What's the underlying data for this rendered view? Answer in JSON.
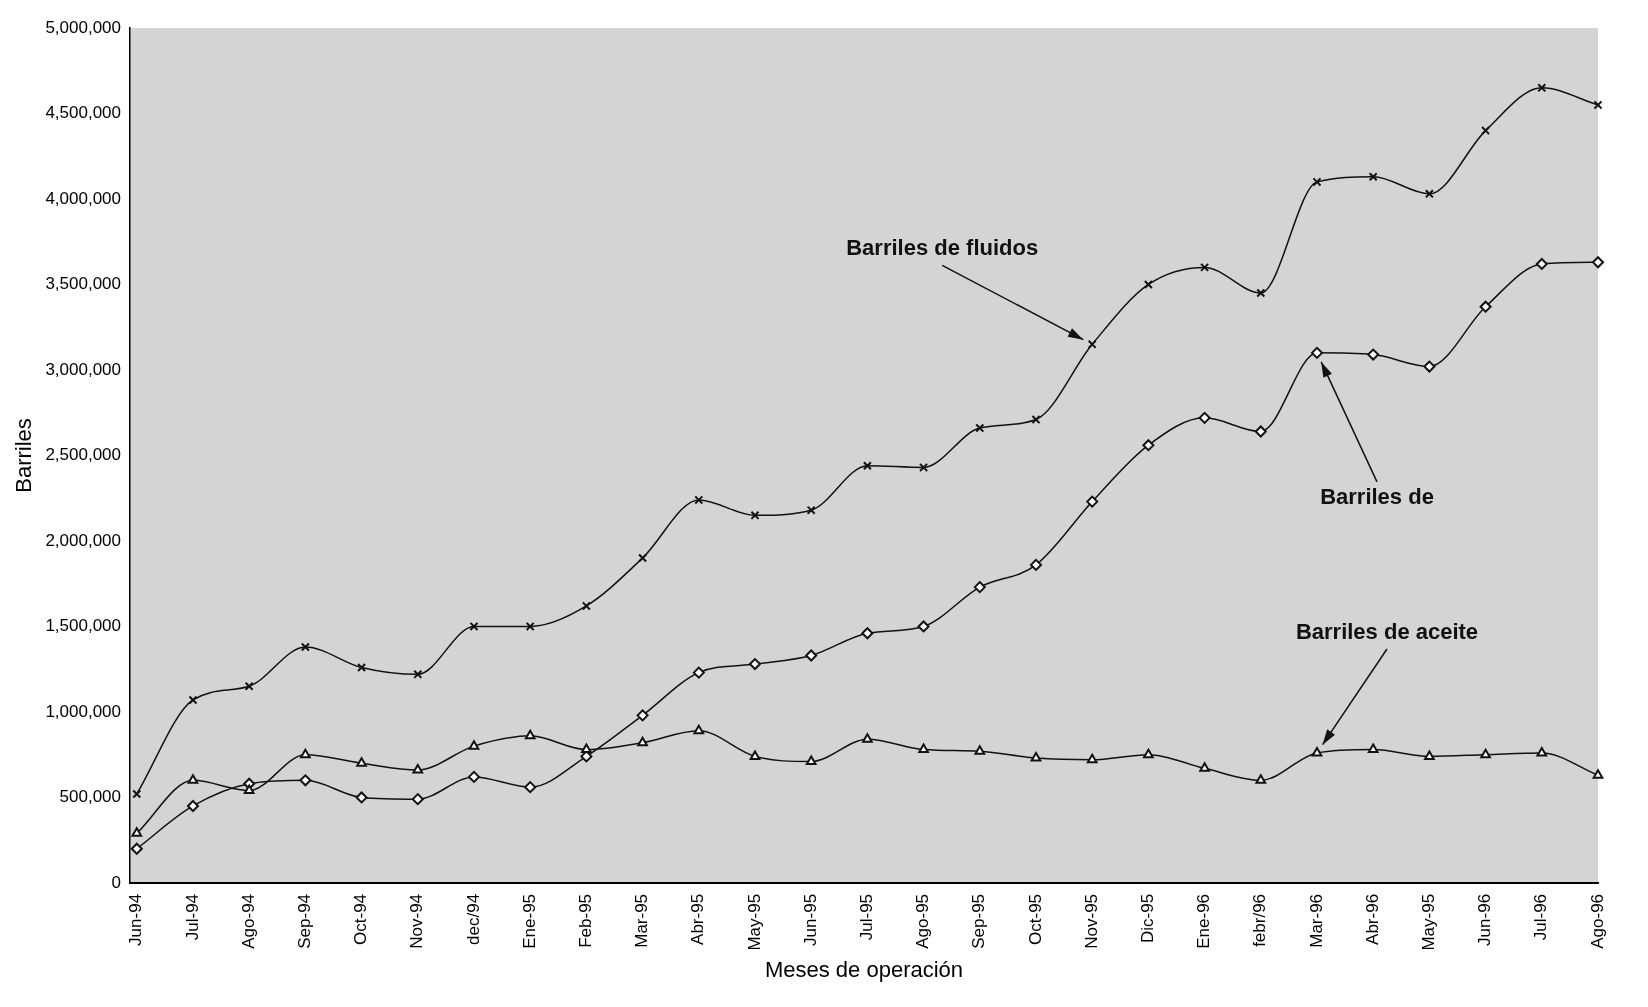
{
  "chart_data": {
    "type": "line",
    "xlabel": "Meses de operación",
    "ylabel": "Barriles",
    "categories": [
      "Jun-94",
      "Jul-94",
      "Ago-94",
      "Sep-94",
      "Oct-94",
      "Nov-94",
      "dec/94",
      "Ene-95",
      "Feb-95",
      "Mar-95",
      "Abr-95",
      "May-95",
      "Jun-95",
      "Jul-95",
      "Ago-95",
      "Sep-95",
      "Oct-95",
      "Nov-95",
      "Dic-95",
      "Ene-96",
      "febr/96",
      "Mar-96",
      "Abr-96",
      "May-95",
      "Jun-96",
      "Jul-96",
      "Ago-96"
    ],
    "series": [
      {
        "name": "Barriles de fluidos",
        "color": "#111111",
        "marker": "cross",
        "values": [
          520000,
          1070000,
          1150000,
          1380000,
          1260000,
          1220000,
          1500000,
          1500000,
          1620000,
          1900000,
          2240000,
          2150000,
          2180000,
          2440000,
          2430000,
          2660000,
          2710000,
          3150000,
          3500000,
          3600000,
          3450000,
          4100000,
          4130000,
          4030000,
          4400000,
          4650000,
          4550000
        ]
      },
      {
        "name": "Barriles de",
        "color": "#111111",
        "marker": "diamond",
        "values": [
          200000,
          450000,
          580000,
          600000,
          500000,
          490000,
          620000,
          560000,
          740000,
          980000,
          1230000,
          1280000,
          1330000,
          1460000,
          1500000,
          1730000,
          1860000,
          2230000,
          2560000,
          2720000,
          2640000,
          3100000,
          3090000,
          3020000,
          3370000,
          3620000,
          3630000
        ]
      },
      {
        "name": "Barriles de aceite",
        "color": "#111111",
        "marker": "triangle",
        "values": [
          290000,
          600000,
          540000,
          750000,
          700000,
          660000,
          800000,
          860000,
          780000,
          820000,
          890000,
          740000,
          710000,
          840000,
          780000,
          770000,
          730000,
          720000,
          750000,
          670000,
          600000,
          760000,
          780000,
          740000,
          750000,
          760000,
          630000
        ]
      }
    ],
    "ylim": [
      0,
      5000000
    ],
    "yticks": [
      0,
      {
        "value": 500000,
        "label": "500,000"
      },
      {
        "value": 1000000,
        "label": "1,000,000"
      },
      {
        "value": 1500000,
        "label": "1,500,000"
      },
      {
        "value": 2000000,
        "label": "2,000,000"
      },
      {
        "value": 2500000,
        "label": "2,500,000"
      },
      {
        "value": 3000000,
        "label": "3,000,000"
      },
      {
        "value": 3500000,
        "label": "3,500,000"
      },
      {
        "value": 4000000,
        "label": "4,000,000"
      },
      {
        "value": 4500000,
        "label": "4,500,000"
      },
      {
        "value": 5000000,
        "label": "5,000,000"
      }
    ],
    "grid": false,
    "legend": false
  }
}
